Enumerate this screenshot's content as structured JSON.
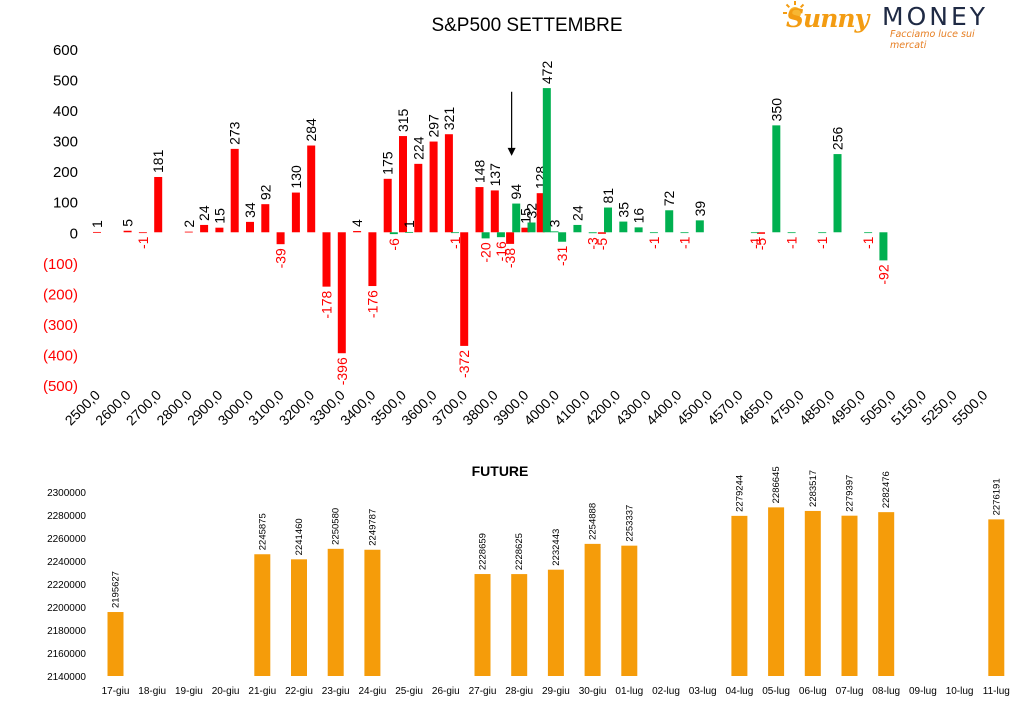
{
  "logo": {
    "brand_left": "Sunny",
    "brand_right": "MONEY",
    "tagline": "Facciamo luce sui mercati"
  },
  "colors": {
    "negative": "#ff0000",
    "positive": "#00b050",
    "future_bar": "#f59c0a",
    "text": "#000000"
  },
  "chart_data": [
    {
      "type": "bar",
      "title": "S&P500 SETTEMBRE",
      "xlabel": "",
      "ylabel": "",
      "ylim": [
        -500,
        600
      ],
      "y_ticks": [
        600,
        500,
        400,
        300,
        200,
        100,
        0,
        -100,
        -200,
        -300,
        -400,
        -500
      ],
      "y_tick_labels": [
        "600",
        "500",
        "400",
        "300",
        "200",
        "100",
        "0",
        "(100)",
        "(200)",
        "(300)",
        "(400)",
        "(500)"
      ],
      "categories": [
        "2500,0",
        "2600,0",
        "2700,0",
        "2800,0",
        "2900,0",
        "3000,0",
        "3100,0",
        "3200,0",
        "3300,0",
        "3400,0",
        "3500,0",
        "3600,0",
        "3700,0",
        "3800,0",
        "3900,0",
        "4000,0",
        "4100,0",
        "4200,0",
        "4300,0",
        "4400,0",
        "4500,0",
        "4570,0",
        "4650,0",
        "4750,0",
        "4850,0",
        "4950,0",
        "5050,0",
        "5150,0",
        "5250,0",
        "5500,0"
      ],
      "series": [
        {
          "color": "#ff0000",
          "points": [
            {
              "x": 0.0,
              "value": 1,
              "label": "1"
            },
            {
              "x": 1.0,
              "value": 5,
              "label": "5"
            },
            {
              "x": 1.5,
              "value": -1,
              "label": "-1"
            },
            {
              "x": 2.0,
              "value": 181,
              "label": "181"
            },
            {
              "x": 3.0,
              "value": 2,
              "label": "2"
            },
            {
              "x": 3.5,
              "value": 24,
              "label": "24"
            },
            {
              "x": 4.0,
              "value": 15,
              "label": "15"
            },
            {
              "x": 4.5,
              "value": 273,
              "label": "273"
            },
            {
              "x": 5.0,
              "value": 34,
              "label": "34"
            },
            {
              "x": 5.5,
              "value": 92,
              "label": "92"
            },
            {
              "x": 6.0,
              "value": -39,
              "label": "-39"
            },
            {
              "x": 6.5,
              "value": 130,
              "label": "130"
            },
            {
              "x": 7.0,
              "value": 284,
              "label": "284"
            },
            {
              "x": 7.5,
              "value": -178,
              "label": "-178"
            },
            {
              "x": 8.0,
              "value": -396,
              "label": "-396"
            },
            {
              "x": 8.5,
              "value": 4,
              "label": "4"
            },
            {
              "x": 9.0,
              "value": -176,
              "label": "-176"
            },
            {
              "x": 9.5,
              "value": 175,
              "label": "175"
            },
            {
              "x": 10.0,
              "value": 315,
              "label": "315"
            },
            {
              "x": 10.5,
              "value": 224,
              "label": "224"
            },
            {
              "x": 11.0,
              "value": 297,
              "label": "297"
            },
            {
              "x": 11.5,
              "value": 321,
              "label": "321"
            },
            {
              "x": 12.0,
              "value": -372,
              "label": "-372"
            },
            {
              "x": 12.5,
              "value": 148,
              "label": "148"
            },
            {
              "x": 13.0,
              "value": 137,
              "label": "137"
            },
            {
              "x": 13.5,
              "value": -38,
              "label": "-38"
            },
            {
              "x": 14.0,
              "value": 15,
              "label": "15"
            },
            {
              "x": 14.5,
              "value": 128,
              "label": "128"
            },
            {
              "x": 16.5,
              "value": -5,
              "label": "-5"
            },
            {
              "x": 21.7,
              "value": -5,
              "label": "-5"
            }
          ]
        },
        {
          "color": "#00b050",
          "points": [
            {
              "x": 9.7,
              "value": -6,
              "label": "-6"
            },
            {
              "x": 10.2,
              "value": 1,
              "label": "1"
            },
            {
              "x": 11.7,
              "value": -1,
              "label": "-1"
            },
            {
              "x": 12.7,
              "value": -20,
              "label": "-20"
            },
            {
              "x": 13.2,
              "value": -16,
              "label": "-16"
            },
            {
              "x": 13.7,
              "value": 94,
              "label": "94"
            },
            {
              "x": 14.2,
              "value": 32,
              "label": "32"
            },
            {
              "x": 14.7,
              "value": 472,
              "label": "472"
            },
            {
              "x": 14.95,
              "value": 3,
              "label": "3"
            },
            {
              "x": 15.2,
              "value": -31,
              "label": "-31"
            },
            {
              "x": 15.7,
              "value": 24,
              "label": "24"
            },
            {
              "x": 16.2,
              "value": -3,
              "label": "-3"
            },
            {
              "x": 16.7,
              "value": 81,
              "label": "81"
            },
            {
              "x": 17.2,
              "value": 35,
              "label": "35"
            },
            {
              "x": 17.7,
              "value": 16,
              "label": "16"
            },
            {
              "x": 18.2,
              "value": -1,
              "label": "-1"
            },
            {
              "x": 18.7,
              "value": 72,
              "label": "72"
            },
            {
              "x": 19.2,
              "value": -1,
              "label": "-1"
            },
            {
              "x": 19.7,
              "value": 39,
              "label": "39"
            },
            {
              "x": 21.5,
              "value": -1,
              "label": "-1"
            },
            {
              "x": 22.2,
              "value": 350,
              "label": "350"
            },
            {
              "x": 22.7,
              "value": -1,
              "label": "-1"
            },
            {
              "x": 23.7,
              "value": -1,
              "label": "-1"
            },
            {
              "x": 24.2,
              "value": 256,
              "label": "256"
            },
            {
              "x": 25.2,
              "value": -1,
              "label": "-1"
            },
            {
              "x": 25.7,
              "value": -92,
              "label": "-92"
            }
          ]
        }
      ],
      "annotations": [
        {
          "type": "arrow",
          "x": 13.55,
          "from_value": 460,
          "to_value": 250
        }
      ]
    },
    {
      "type": "bar",
      "title": "FUTURE",
      "xlabel": "",
      "ylabel": "",
      "ylim": [
        2140000,
        2300000
      ],
      "y_ticks": [
        2300000,
        2280000,
        2260000,
        2240000,
        2220000,
        2200000,
        2180000,
        2160000,
        2140000
      ],
      "categories": [
        "17-giu",
        "18-giu",
        "19-giu",
        "20-giu",
        "21-giu",
        "22-giu",
        "23-giu",
        "24-giu",
        "25-giu",
        "26-giu",
        "27-giu",
        "28-giu",
        "29-giu",
        "30-giu",
        "01-lug",
        "02-lug",
        "03-lug",
        "04-lug",
        "05-lug",
        "06-lug",
        "07-lug",
        "08-lug",
        "09-lug",
        "10-lug",
        "11-lug"
      ],
      "values": [
        2195627,
        null,
        null,
        null,
        2245875,
        2241460,
        2250580,
        2249787,
        null,
        null,
        2228659,
        2228625,
        2232443,
        2254888,
        2253337,
        null,
        null,
        2279244,
        2286645,
        2283517,
        2279397,
        2282476,
        null,
        null,
        2276191
      ],
      "labels": [
        "2195627",
        "",
        "",
        "",
        "2245875",
        "2241460",
        "2250580",
        "2249787",
        "",
        "",
        "2228659",
        "2228625",
        "2232443",
        "2254888",
        "2253337",
        "",
        "",
        "2279244",
        "2286645",
        "2283517",
        "2279397",
        "2282476",
        "",
        "",
        "2276191"
      ]
    }
  ]
}
